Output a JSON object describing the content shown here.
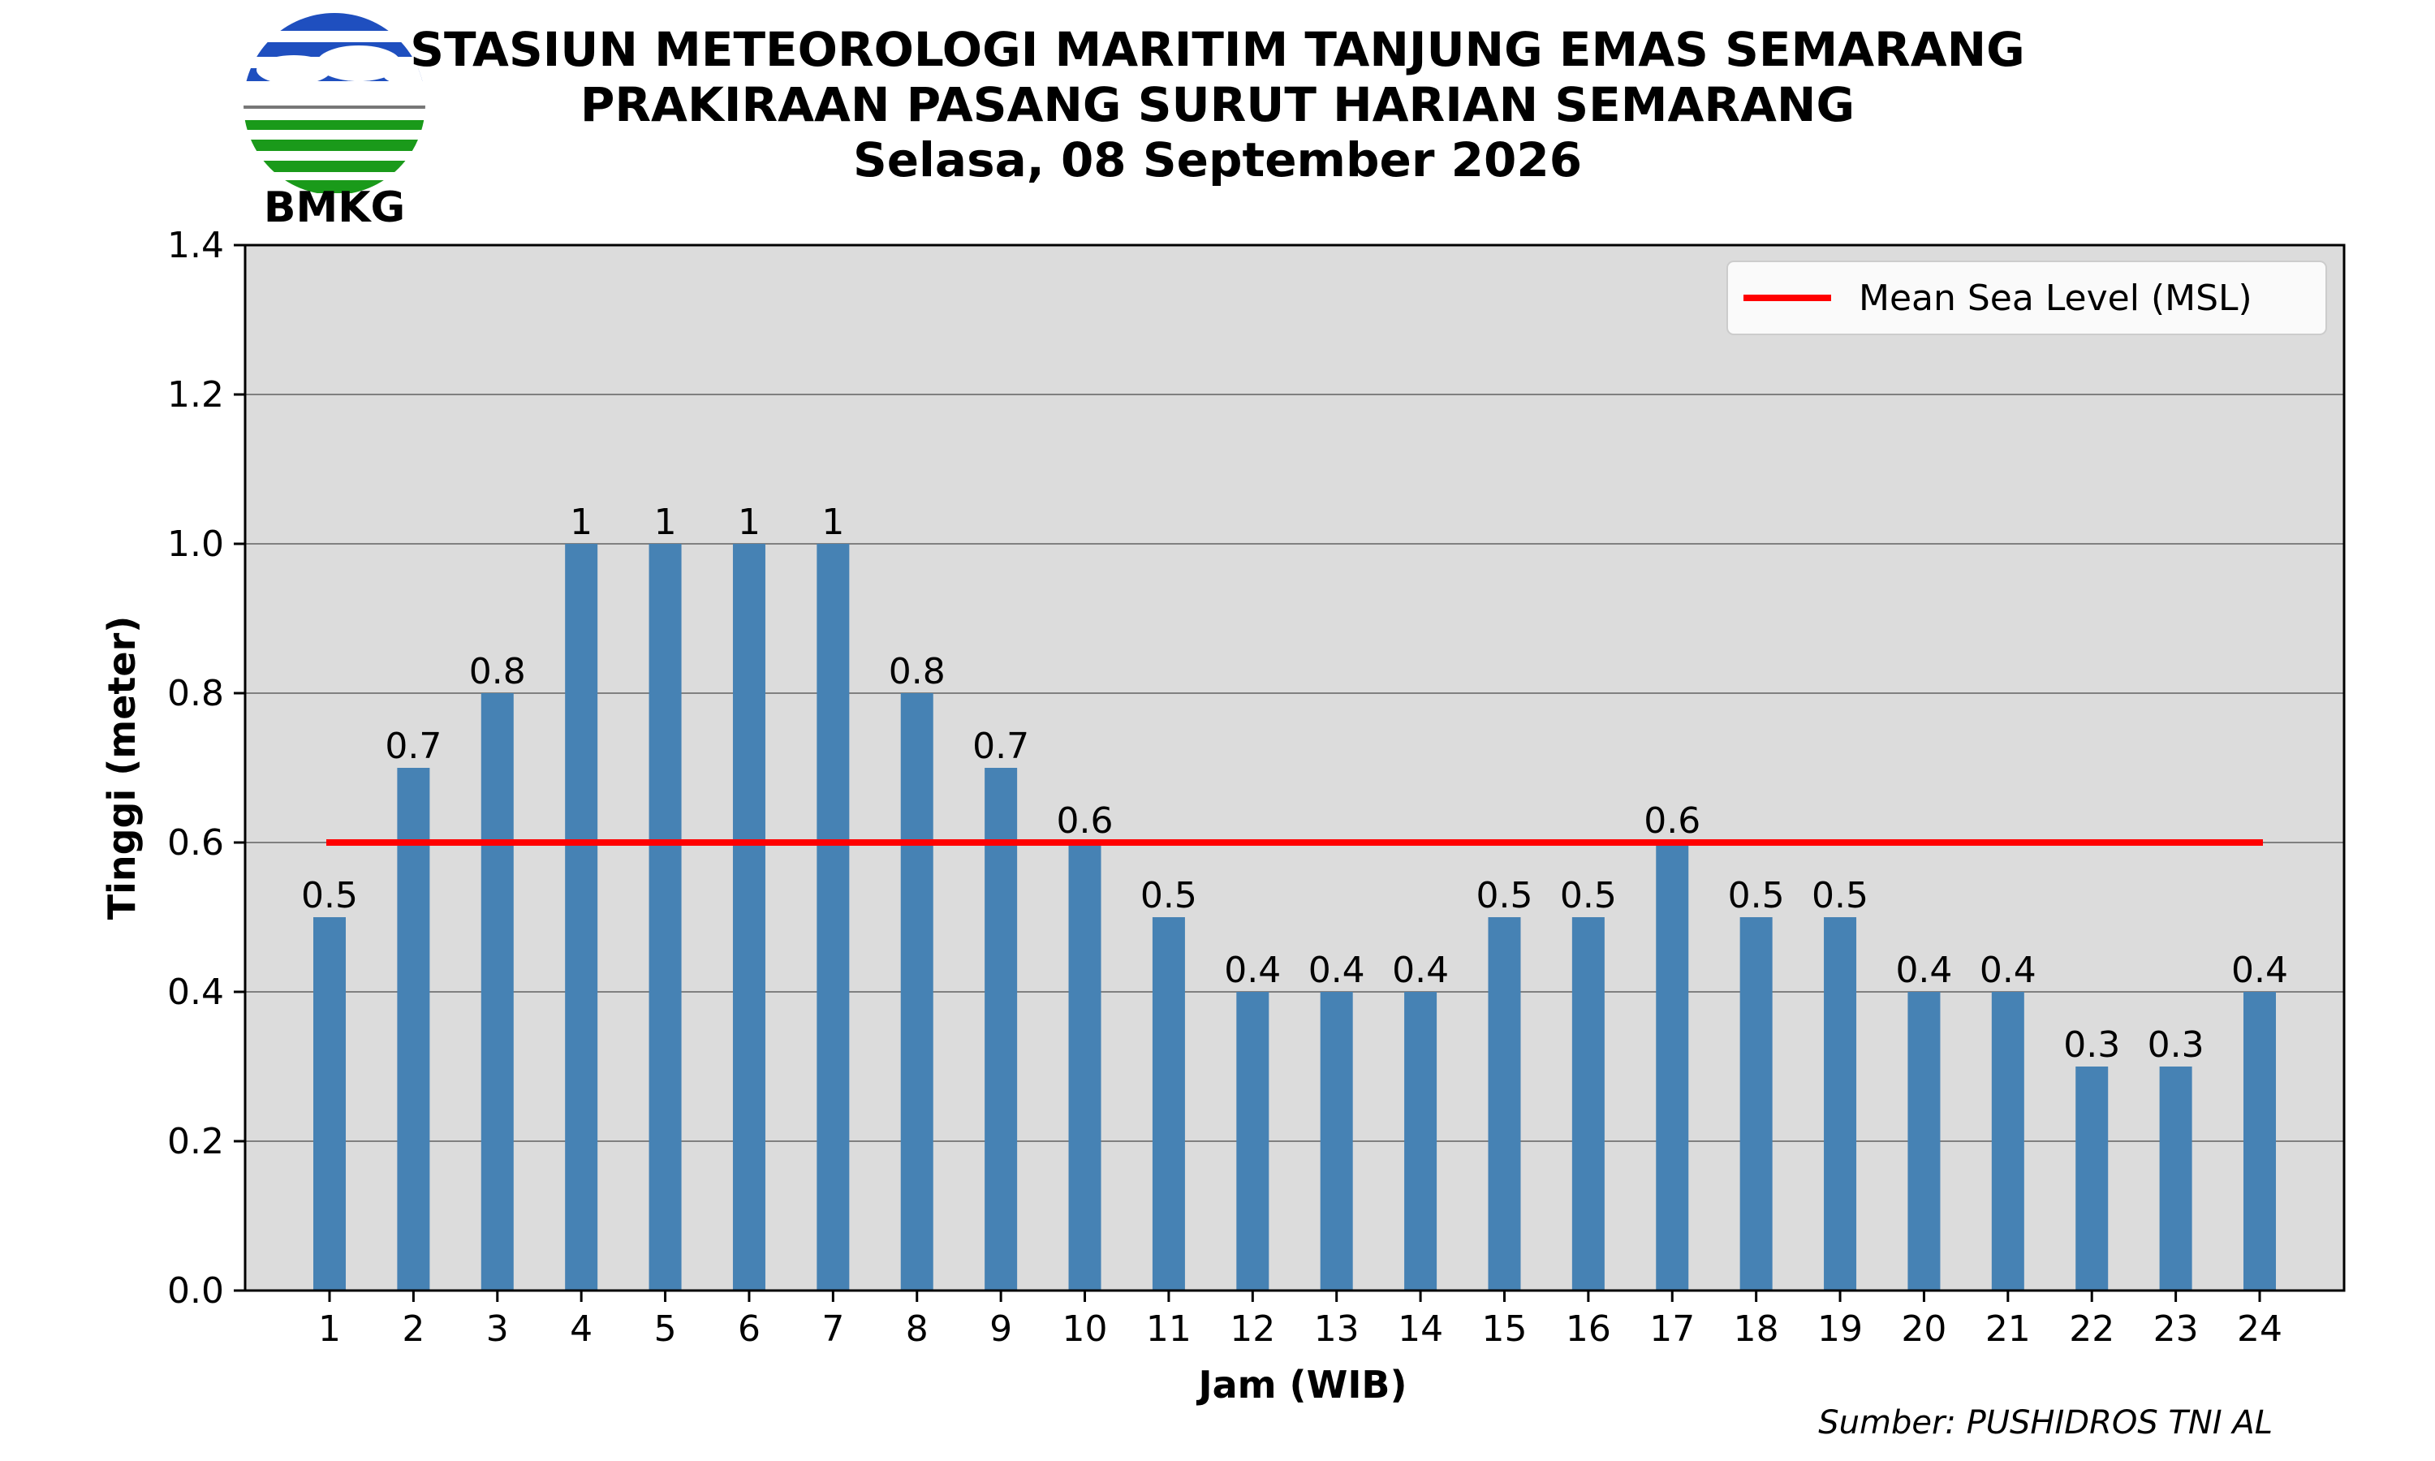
{
  "header": {
    "logo_text": "BMKG",
    "title_lines": [
      "STASIUN METEOROLOGI MARITIM TANJUNG EMAS SEMARANG",
      "PRAKIRAAN PASANG SURUT HARIAN SEMARANG",
      "Selasa, 08 September 2026"
    ]
  },
  "source_note": "Sumber: PUSHIDROS TNI AL",
  "chart_data": {
    "type": "bar",
    "title": "PRAKIRAAN PASANG SURUT HARIAN SEMARANG",
    "xlabel": "Jam (WIB)",
    "ylabel": "Tinggi (meter)",
    "ylim": [
      0,
      1.4
    ],
    "yticks": [
      "0.0",
      "0.2",
      "0.4",
      "0.6",
      "0.8",
      "1.0",
      "1.2",
      "1.4"
    ],
    "categories": [
      "1",
      "2",
      "3",
      "4",
      "5",
      "6",
      "7",
      "8",
      "9",
      "10",
      "11",
      "12",
      "13",
      "14",
      "15",
      "16",
      "17",
      "18",
      "19",
      "20",
      "21",
      "22",
      "23",
      "24"
    ],
    "values": [
      0.5,
      0.7,
      0.8,
      1,
      1,
      1,
      1,
      0.8,
      0.7,
      0.6,
      0.5,
      0.4,
      0.4,
      0.4,
      0.5,
      0.5,
      0.6,
      0.5,
      0.5,
      0.4,
      0.4,
      0.3,
      0.3,
      0.4
    ],
    "data_labels": [
      "0.5",
      "0.7",
      "0.8",
      "1",
      "1",
      "1",
      "1",
      "0.8",
      "0.7",
      "0.6",
      "0.5",
      "0.4",
      "0.4",
      "0.4",
      "0.5",
      "0.5",
      "0.6",
      "0.5",
      "0.5",
      "0.4",
      "0.4",
      "0.3",
      "0.3",
      "0.4"
    ],
    "reference_line": {
      "name": "Mean Sea Level (MSL)",
      "value": 0.6
    },
    "legend": {
      "entries": [
        "Mean Sea Level (MSL)"
      ],
      "placement": "top-right"
    },
    "grid": "horizontal",
    "colors": {
      "bar": "#4682b4",
      "msl": "#ff0000",
      "plot_background": "#dcdcdc",
      "grid": "#808080"
    }
  },
  "logo_colors": {
    "blue": "#1f4fbf",
    "green": "#1a9a1a",
    "line": "#777777"
  }
}
